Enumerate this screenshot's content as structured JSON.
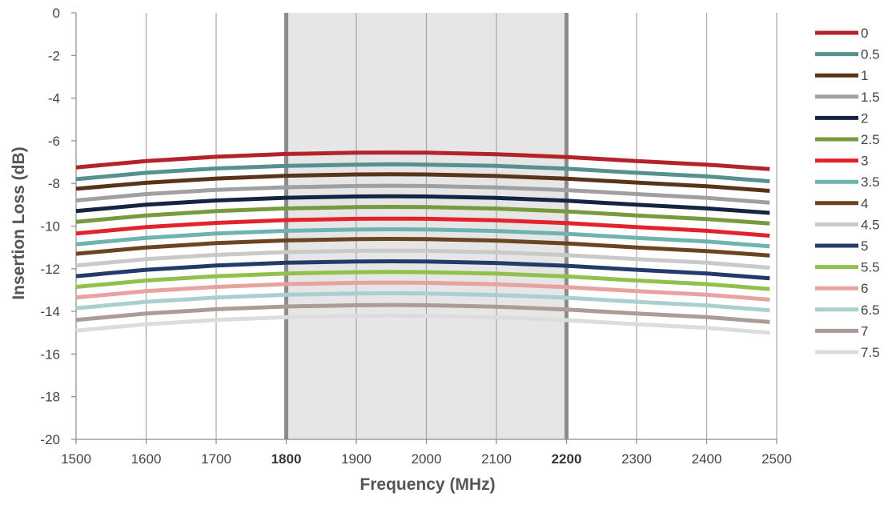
{
  "chart_data": {
    "type": "line",
    "title": "",
    "xlabel": "Frequency (MHz)",
    "ylabel": "Insertion Loss (dB)",
    "xlim": [
      1500,
      2500
    ],
    "ylim": [
      -20,
      0
    ],
    "xticks": [
      1500,
      1600,
      1700,
      1800,
      1900,
      2000,
      2100,
      2200,
      2300,
      2400,
      2500
    ],
    "yticks": [
      0,
      -2,
      -4,
      -6,
      -8,
      -10,
      -12,
      -14,
      -16,
      -18,
      -20
    ],
    "bold_xticks": [
      1800,
      2200
    ],
    "highlight_band": {
      "from": 1800,
      "to": 2200,
      "color": "#e6e6e6",
      "edge_color": "#8c8c8c"
    },
    "grid": {
      "vertical": true,
      "horizontal": false
    },
    "legend_position": "right",
    "x": [
      1500,
      1600,
      1700,
      1800,
      1900,
      1950,
      2000,
      2100,
      2200,
      2300,
      2400,
      2490
    ],
    "series": [
      {
        "name": "0",
        "color": "#b5232a",
        "values": [
          -7.25,
          -6.95,
          -6.75,
          -6.62,
          -6.56,
          -6.55,
          -6.56,
          -6.63,
          -6.76,
          -6.95,
          -7.12,
          -7.33
        ]
      },
      {
        "name": "0.5",
        "color": "#55918f",
        "values": [
          -7.8,
          -7.5,
          -7.3,
          -7.18,
          -7.12,
          -7.1,
          -7.12,
          -7.18,
          -7.31,
          -7.5,
          -7.67,
          -7.9
        ]
      },
      {
        "name": "1",
        "color": "#5a3418",
        "values": [
          -8.25,
          -7.97,
          -7.77,
          -7.64,
          -7.58,
          -7.57,
          -7.58,
          -7.65,
          -7.78,
          -7.96,
          -8.13,
          -8.35
        ]
      },
      {
        "name": "1.5",
        "color": "#a0a0a0",
        "values": [
          -8.8,
          -8.5,
          -8.3,
          -8.18,
          -8.12,
          -8.11,
          -8.12,
          -8.19,
          -8.31,
          -8.5,
          -8.68,
          -8.9
        ]
      },
      {
        "name": "2",
        "color": "#142544",
        "values": [
          -9.3,
          -9.0,
          -8.8,
          -8.67,
          -8.61,
          -8.6,
          -8.61,
          -8.68,
          -8.81,
          -9.0,
          -9.17,
          -9.38
        ]
      },
      {
        "name": "2.5",
        "color": "#779a3e",
        "values": [
          -9.8,
          -9.5,
          -9.3,
          -9.17,
          -9.11,
          -9.1,
          -9.11,
          -9.18,
          -9.31,
          -9.5,
          -9.67,
          -9.88
        ]
      },
      {
        "name": "3",
        "color": "#e3232c",
        "values": [
          -10.35,
          -10.05,
          -9.85,
          -9.72,
          -9.66,
          -9.65,
          -9.66,
          -9.73,
          -9.86,
          -10.05,
          -10.22,
          -10.45
        ]
      },
      {
        "name": "3.5",
        "color": "#6fb3b1",
        "values": [
          -10.85,
          -10.55,
          -10.35,
          -10.22,
          -10.16,
          -10.15,
          -10.16,
          -10.23,
          -10.36,
          -10.55,
          -10.72,
          -10.95
        ]
      },
      {
        "name": "4",
        "color": "#6b4522",
        "values": [
          -11.3,
          -11.0,
          -10.8,
          -10.67,
          -10.61,
          -10.6,
          -10.61,
          -10.68,
          -10.81,
          -11.0,
          -11.17,
          -11.38
        ]
      },
      {
        "name": "4.5",
        "color": "#c9c9c9",
        "values": [
          -11.85,
          -11.55,
          -11.35,
          -11.22,
          -11.16,
          -11.15,
          -11.16,
          -11.23,
          -11.36,
          -11.55,
          -11.72,
          -11.95
        ]
      },
      {
        "name": "5",
        "color": "#233b6b",
        "values": [
          -12.35,
          -12.05,
          -11.85,
          -11.72,
          -11.66,
          -11.65,
          -11.66,
          -11.73,
          -11.86,
          -12.05,
          -12.22,
          -12.45
        ]
      },
      {
        "name": "5.5",
        "color": "#92c04c",
        "values": [
          -12.85,
          -12.55,
          -12.35,
          -12.22,
          -12.16,
          -12.15,
          -12.16,
          -12.23,
          -12.36,
          -12.55,
          -12.72,
          -12.95
        ]
      },
      {
        "name": "6",
        "color": "#e8a2a0",
        "values": [
          -13.35,
          -13.05,
          -12.85,
          -12.72,
          -12.66,
          -12.65,
          -12.66,
          -12.73,
          -12.86,
          -13.05,
          -13.22,
          -13.45
        ]
      },
      {
        "name": "6.5",
        "color": "#a9cfce",
        "values": [
          -13.85,
          -13.55,
          -13.35,
          -13.22,
          -13.16,
          -13.15,
          -13.16,
          -13.23,
          -13.36,
          -13.55,
          -13.72,
          -13.95
        ]
      },
      {
        "name": "7",
        "color": "#ab9c98",
        "values": [
          -14.4,
          -14.1,
          -13.9,
          -13.77,
          -13.71,
          -13.7,
          -13.71,
          -13.78,
          -13.91,
          -14.1,
          -14.27,
          -14.5
        ]
      },
      {
        "name": "7.5",
        "color": "#dcdcdc",
        "values": [
          -14.9,
          -14.6,
          -14.4,
          -14.27,
          -14.21,
          -14.2,
          -14.21,
          -14.28,
          -14.41,
          -14.6,
          -14.77,
          -15.0
        ]
      }
    ]
  }
}
